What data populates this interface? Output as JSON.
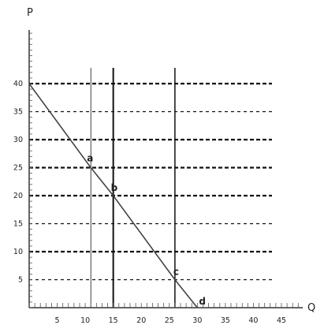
{
  "chart_data": {
    "type": "line",
    "title": "",
    "xlabel": "Q",
    "ylabel": "P",
    "xlim": [
      0,
      45
    ],
    "ylim": [
      0,
      40
    ],
    "x_ticks": [
      5,
      10,
      15,
      20,
      25,
      30,
      35,
      40,
      45
    ],
    "y_ticks": [
      5,
      10,
      15,
      20,
      25,
      30,
      35,
      40
    ],
    "series": [
      {
        "x": [
          0,
          11,
          15,
          26,
          30
        ],
        "y": [
          40,
          25,
          20,
          5,
          0
        ]
      }
    ],
    "points": [
      {
        "label": "a",
        "x": 11,
        "y": 25
      },
      {
        "label": "b",
        "x": 15,
        "y": 20
      },
      {
        "label": "c",
        "x": 26,
        "y": 5
      },
      {
        "label": "d",
        "x": 30,
        "y": 0
      }
    ],
    "horizontal_dashed_levels": [
      40,
      35,
      30,
      25,
      20,
      15,
      10,
      5
    ],
    "vertical_reference_lines": [
      11,
      15,
      26
    ],
    "grid": "dashed-horizontal"
  }
}
